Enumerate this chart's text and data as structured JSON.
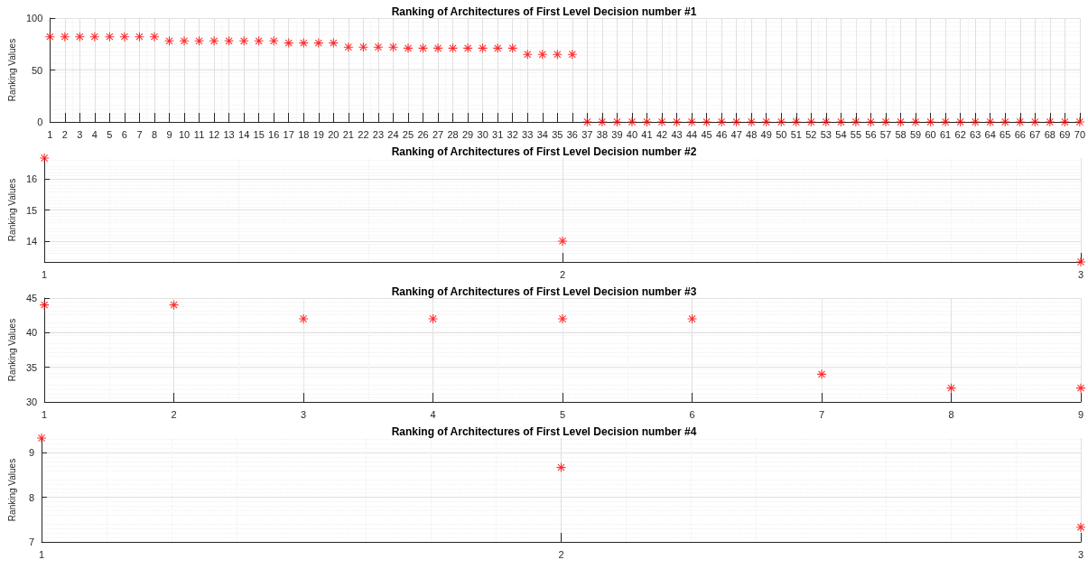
{
  "chart_data": [
    {
      "type": "scatter",
      "title": "Ranking of Architectures of First Level Decision number #1",
      "ylabel": "Ranking Values",
      "x": [
        1,
        2,
        3,
        4,
        5,
        6,
        7,
        8,
        9,
        10,
        11,
        12,
        13,
        14,
        15,
        16,
        17,
        18,
        19,
        20,
        21,
        22,
        23,
        24,
        25,
        26,
        27,
        28,
        29,
        30,
        31,
        32,
        33,
        34,
        35,
        36,
        37,
        38,
        39,
        40,
        41,
        42,
        43,
        44,
        45,
        46,
        47,
        48,
        49,
        50,
        51,
        52,
        53,
        54,
        55,
        56,
        57,
        58,
        59,
        60,
        61,
        62,
        63,
        64,
        65,
        66,
        67,
        68,
        69,
        70
      ],
      "series": [
        {
          "color": "#ff0000",
          "values": [
            82,
            82,
            82,
            82,
            82,
            82,
            82,
            82,
            78,
            78,
            78,
            78,
            78,
            78,
            78,
            78,
            76,
            76,
            76,
            76,
            72,
            72,
            72,
            72,
            71,
            71,
            71,
            71,
            71,
            71,
            71,
            71,
            65,
            65,
            65,
            65,
            0,
            0,
            0,
            0,
            0,
            0,
            0,
            0,
            0,
            0,
            0,
            0,
            0,
            0,
            0,
            0,
            0,
            0,
            0,
            0,
            0,
            0,
            0,
            0,
            0,
            0,
            0,
            0,
            0,
            0,
            0,
            0,
            0,
            0
          ]
        }
      ],
      "xlim": [
        1,
        70
      ],
      "xticks": [
        1,
        2,
        3,
        4,
        5,
        6,
        7,
        8,
        9,
        10,
        11,
        12,
        13,
        14,
        15,
        16,
        17,
        18,
        19,
        20,
        21,
        22,
        23,
        24,
        25,
        26,
        27,
        28,
        29,
        30,
        31,
        32,
        33,
        34,
        35,
        36,
        37,
        38,
        39,
        40,
        41,
        42,
        43,
        44,
        45,
        46,
        47,
        48,
        49,
        50,
        51,
        52,
        53,
        54,
        55,
        56,
        57,
        58,
        59,
        60,
        61,
        62,
        63,
        64,
        65,
        66,
        67,
        68,
        69,
        70
      ],
      "ylim": [
        0,
        100
      ],
      "yticks": [
        0,
        50,
        100
      ],
      "grid": true,
      "marker": "star"
    },
    {
      "type": "scatter",
      "title": "Ranking of Architectures of First Level Decision number #2",
      "ylabel": "Ranking Values",
      "x": [
        1,
        2,
        3
      ],
      "series": [
        {
          "color": "#ff0000",
          "values": [
            16.67,
            14,
            13.33
          ]
        }
      ],
      "xlim": [
        1,
        3
      ],
      "xticks": [
        1,
        2,
        3
      ],
      "ylim": [
        13.33,
        16.67
      ],
      "yticks": [
        14,
        15,
        16
      ],
      "grid": true,
      "marker": "star"
    },
    {
      "type": "scatter",
      "title": "Ranking of Architectures of First Level Decision number #3",
      "ylabel": "Ranking Values",
      "x": [
        1,
        2,
        3,
        4,
        5,
        6,
        7,
        8,
        9
      ],
      "series": [
        {
          "color": "#ff0000",
          "values": [
            44,
            44,
            42,
            42,
            42,
            42,
            34,
            32,
            32
          ]
        }
      ],
      "xlim": [
        1,
        9
      ],
      "xticks": [
        1,
        2,
        3,
        4,
        5,
        6,
        7,
        8,
        9
      ],
      "ylim": [
        30,
        45
      ],
      "yticks": [
        30,
        35,
        40,
        45
      ],
      "grid": true,
      "marker": "star"
    },
    {
      "type": "scatter",
      "title": "Ranking of Architectures of First Level Decision number #4",
      "ylabel": "Ranking Values",
      "x": [
        1,
        2,
        3
      ],
      "series": [
        {
          "color": "#ff0000",
          "values": [
            9.33,
            8.67,
            7.33
          ]
        }
      ],
      "xlim": [
        1,
        3
      ],
      "xticks": [
        1,
        2,
        3
      ],
      "ylim": [
        7,
        9.33
      ],
      "yticks": [
        7,
        8,
        9
      ],
      "grid": true,
      "marker": "star"
    }
  ]
}
